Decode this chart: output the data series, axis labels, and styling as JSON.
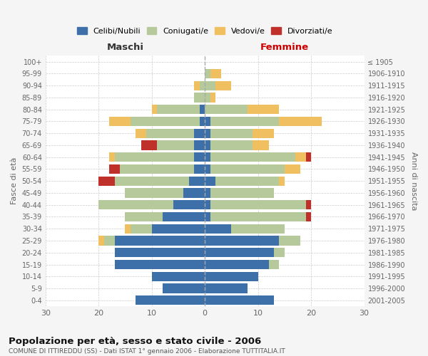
{
  "age_groups": [
    "0-4",
    "5-9",
    "10-14",
    "15-19",
    "20-24",
    "25-29",
    "30-34",
    "35-39",
    "40-44",
    "45-49",
    "50-54",
    "55-59",
    "60-64",
    "65-69",
    "70-74",
    "75-79",
    "80-84",
    "85-89",
    "90-94",
    "95-99",
    "100+"
  ],
  "birth_years": [
    "2001-2005",
    "1996-2000",
    "1991-1995",
    "1986-1990",
    "1981-1985",
    "1976-1980",
    "1971-1975",
    "1966-1970",
    "1961-1965",
    "1956-1960",
    "1951-1955",
    "1946-1950",
    "1941-1945",
    "1936-1940",
    "1931-1935",
    "1926-1930",
    "1921-1925",
    "1916-1920",
    "1911-1915",
    "1906-1910",
    "≤ 1905"
  ],
  "male": {
    "celibi": [
      13,
      8,
      10,
      17,
      17,
      17,
      10,
      8,
      6,
      4,
      3,
      2,
      2,
      2,
      2,
      1,
      1,
      0,
      0,
      0,
      0
    ],
    "coniugati": [
      0,
      0,
      0,
      0,
      0,
      2,
      4,
      7,
      14,
      11,
      14,
      14,
      15,
      7,
      9,
      13,
      8,
      2,
      1,
      0,
      0
    ],
    "vedovi": [
      0,
      0,
      0,
      0,
      0,
      1,
      1,
      0,
      0,
      0,
      0,
      0,
      1,
      0,
      2,
      4,
      1,
      0,
      1,
      0,
      0
    ],
    "divorziati": [
      0,
      0,
      0,
      0,
      0,
      0,
      0,
      0,
      0,
      0,
      3,
      2,
      0,
      3,
      0,
      0,
      0,
      0,
      0,
      0,
      0
    ]
  },
  "female": {
    "nubili": [
      13,
      8,
      10,
      12,
      13,
      14,
      5,
      1,
      1,
      1,
      2,
      1,
      1,
      1,
      1,
      1,
      0,
      0,
      0,
      0,
      0
    ],
    "coniugate": [
      0,
      0,
      0,
      2,
      2,
      4,
      10,
      18,
      18,
      12,
      12,
      14,
      16,
      8,
      8,
      13,
      8,
      1,
      2,
      1,
      0
    ],
    "vedove": [
      0,
      0,
      0,
      0,
      0,
      0,
      0,
      0,
      0,
      0,
      1,
      3,
      2,
      3,
      4,
      8,
      6,
      1,
      3,
      2,
      0
    ],
    "divorziate": [
      0,
      0,
      0,
      0,
      0,
      0,
      0,
      1,
      1,
      0,
      0,
      0,
      1,
      0,
      0,
      0,
      0,
      0,
      0,
      0,
      0
    ]
  },
  "color_celibi": "#3d6fa8",
  "color_coniugati": "#b5c99a",
  "color_vedovi": "#f0c060",
  "color_divorziati": "#c0302a",
  "title": "Popolazione per età, sesso e stato civile - 2006",
  "subtitle": "COMUNE DI ITTIREDDU (SS) - Dati ISTAT 1° gennaio 2006 - Elaborazione TUTTITALIA.IT",
  "xlabel_left": "Maschi",
  "xlabel_right": "Femmine",
  "ylabel_left": "Fasce di età",
  "ylabel_right": "Anni di nascita",
  "xlim": 30,
  "legend_labels": [
    "Celibi/Nubili",
    "Coniugati/e",
    "Vedovi/e",
    "Divorziati/e"
  ],
  "bg_color": "#f5f5f5",
  "plot_bg_color": "#ffffff"
}
